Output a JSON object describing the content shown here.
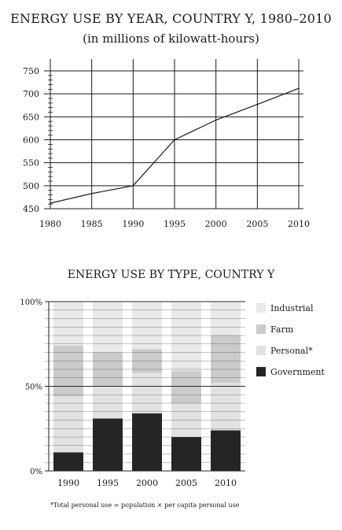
{
  "chart_data": [
    {
      "type": "line",
      "title": "ENERGY USE BY YEAR, COUNTRY Y, 1980–2010",
      "subtitle": "(in millions of kilowatt-hours)",
      "xlabel": "",
      "ylabel": "",
      "x": [
        1980,
        1985,
        1990,
        1995,
        2000,
        2005,
        2010
      ],
      "x_ticks": [
        "1980",
        "1985",
        "1990",
        "1995",
        "2000",
        "2005",
        "2010"
      ],
      "y_ticks": [
        "450",
        "500",
        "550",
        "600",
        "650",
        "700",
        "750"
      ],
      "series": [
        {
          "values": [
            462,
            483,
            500,
            600,
            643,
            677,
            712
          ]
        }
      ],
      "xlim": [
        1980,
        2010
      ],
      "ylim": [
        450,
        750
      ],
      "grid": true
    },
    {
      "type": "bar",
      "stacked": true,
      "title": "ENERGY USE BY TYPE, COUNTRY Y",
      "xlabel": "",
      "ylabel": "",
      "categories": [
        "1990",
        "1995",
        "2000",
        "2005",
        "2010"
      ],
      "y_ticks": [
        "0%",
        "50%",
        "100%"
      ],
      "ylim": [
        0,
        100
      ],
      "legend_position": "right",
      "series": [
        {
          "name": "Government",
          "color": "#252525",
          "values": [
            11,
            31,
            34,
            20,
            24
          ]
        },
        {
          "name": "Personal*",
          "color": "#e2e2e2",
          "values": [
            33,
            19,
            24,
            20,
            28
          ]
        },
        {
          "name": "Farm",
          "color": "#cbcbcb",
          "values": [
            30,
            20,
            14,
            19,
            28
          ]
        },
        {
          "name": "Industrial",
          "color": "#e9e9e9",
          "values": [
            26,
            30,
            28,
            41,
            20
          ]
        }
      ],
      "legend_order": [
        "Industrial",
        "Farm",
        "Personal*",
        "Government"
      ],
      "footnote": "*Total personal use = population × per capita personal use"
    }
  ]
}
